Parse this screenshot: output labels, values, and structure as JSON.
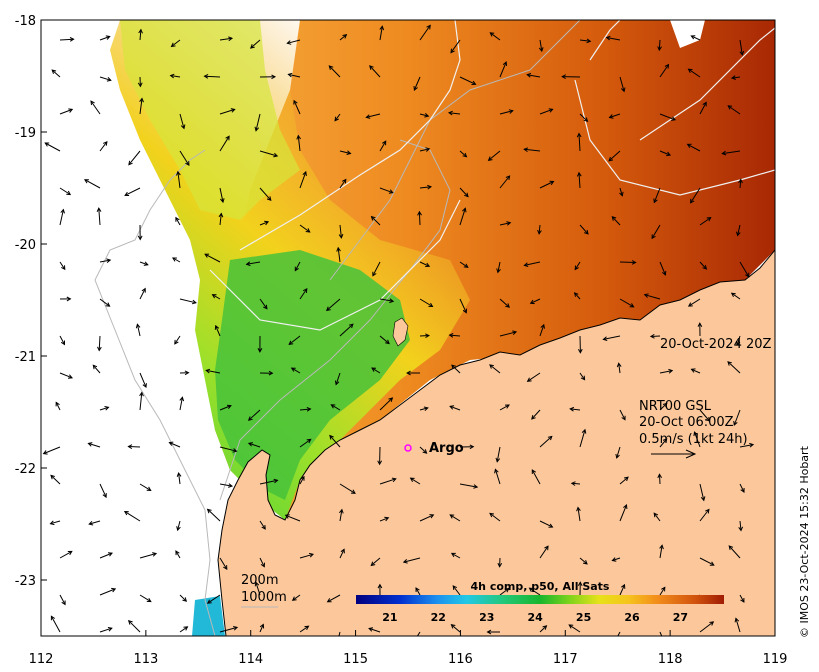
{
  "map": {
    "timestamp": "20-Oct-2024 20Z",
    "current_product": {
      "line1": "NRT00 GSL",
      "line2": "20-Oct 06:00Z",
      "line3": "0.5m/s (1kt 24h)"
    },
    "isobath_labels": [
      "200m",
      "1000m"
    ],
    "argo_label": "Argo",
    "credit": "© IMOS 23-Oct-2024 15:32 Hobart",
    "colorbar": {
      "title": "4h comp, p50, All Sats",
      "ticks": [
        "21",
        "22",
        "23",
        "24",
        "25",
        "26",
        "27"
      ]
    },
    "x_ticks": [
      "112",
      "113",
      "114",
      "115",
      "116",
      "117",
      "118",
      "119"
    ],
    "y_ticks": [
      "-18",
      "-19",
      "-20",
      "-21",
      "-22",
      "-23"
    ],
    "colors": {
      "land": "#fcc89b",
      "no_data": "#ffffff",
      "argo_marker": "#ff00ff"
    }
  },
  "chart_data": {
    "type": "heatmap",
    "xlim": [
      112,
      119
    ],
    "ylim": [
      -23.5,
      -18
    ],
    "colorbar_range": [
      20.3,
      27.9
    ],
    "argo_float": {
      "lon": 115.5,
      "lat": -21.8
    }
  }
}
